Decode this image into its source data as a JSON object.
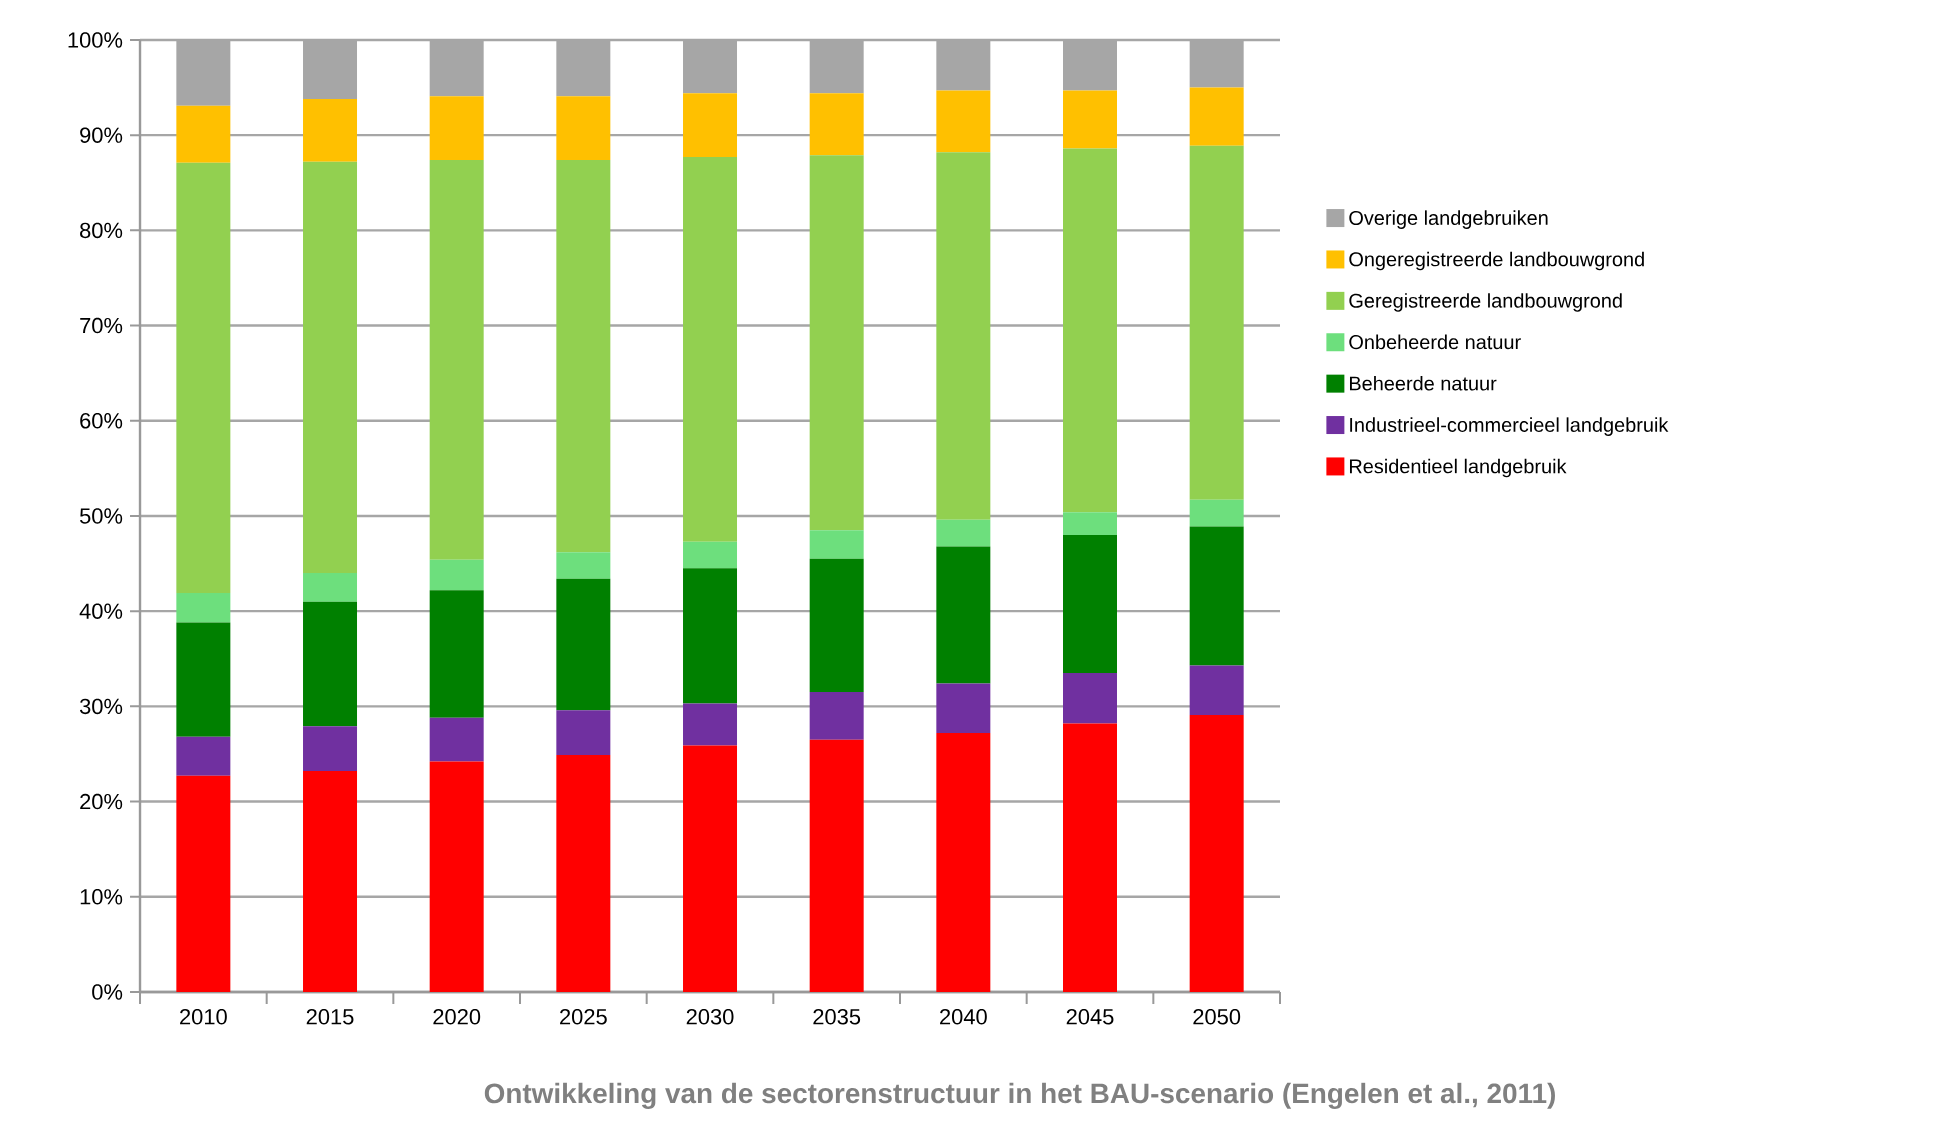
{
  "chart_data": {
    "type": "bar",
    "stacked": true,
    "categories": [
      "2010",
      "2015",
      "2020",
      "2025",
      "2030",
      "2035",
      "2040",
      "2045",
      "2050"
    ],
    "series": [
      {
        "name": "Residentieel landgebruik",
        "color": "#ff0000",
        "values": [
          22.7,
          23.2,
          24.2,
          24.9,
          25.9,
          26.5,
          27.2,
          28.2,
          29.1
        ]
      },
      {
        "name": "Industrieel-commercieel landgebruik",
        "color": "#7030a0",
        "values": [
          4.1,
          4.7,
          4.6,
          4.7,
          4.4,
          5.0,
          5.2,
          5.3,
          5.2
        ]
      },
      {
        "name": "Beheerde natuur",
        "color": "#008000",
        "values": [
          12.0,
          13.1,
          13.4,
          13.8,
          14.2,
          14.0,
          14.4,
          14.5,
          14.6
        ]
      },
      {
        "name": "Onbeheerde natuur",
        "color": "#6ddf7d",
        "values": [
          3.1,
          3.0,
          3.2,
          2.8,
          2.8,
          3.0,
          2.8,
          2.4,
          2.8
        ]
      },
      {
        "name": "Geregistreerde landbouwgrond",
        "color": "#92d050",
        "values": [
          45.2,
          43.2,
          42.0,
          41.2,
          40.4,
          39.4,
          38.6,
          38.2,
          37.2
        ]
      },
      {
        "name": "Ongeregistreerde landbouwgrond",
        "color": "#ffc000",
        "values": [
          6.0,
          6.6,
          6.7,
          6.7,
          6.7,
          6.5,
          6.5,
          6.1,
          6.1
        ]
      },
      {
        "name": "Overige landgebruiken",
        "color": "#a6a6a6",
        "values": [
          6.9,
          6.2,
          5.9,
          5.9,
          5.6,
          5.6,
          5.3,
          5.3,
          5.0
        ]
      }
    ],
    "ylim": [
      0,
      100
    ],
    "yticks": [
      {
        "value": 0,
        "label": "0%"
      },
      {
        "value": 10,
        "label": "10%"
      },
      {
        "value": 20,
        "label": "20%"
      },
      {
        "value": 30,
        "label": "30%"
      },
      {
        "value": 40,
        "label": "40%"
      },
      {
        "value": 50,
        "label": "50%"
      },
      {
        "value": 60,
        "label": "60%"
      },
      {
        "value": 70,
        "label": "70%"
      },
      {
        "value": 80,
        "label": "80%"
      },
      {
        "value": 90,
        "label": "90%"
      },
      {
        "value": 100,
        "label": "100%"
      }
    ],
    "grid": "y",
    "legend": "right",
    "annotations": [
      "Ontwikkeling van de sectorenstructuur in het BAU-scenario (Engelen et al., 2011)"
    ]
  }
}
